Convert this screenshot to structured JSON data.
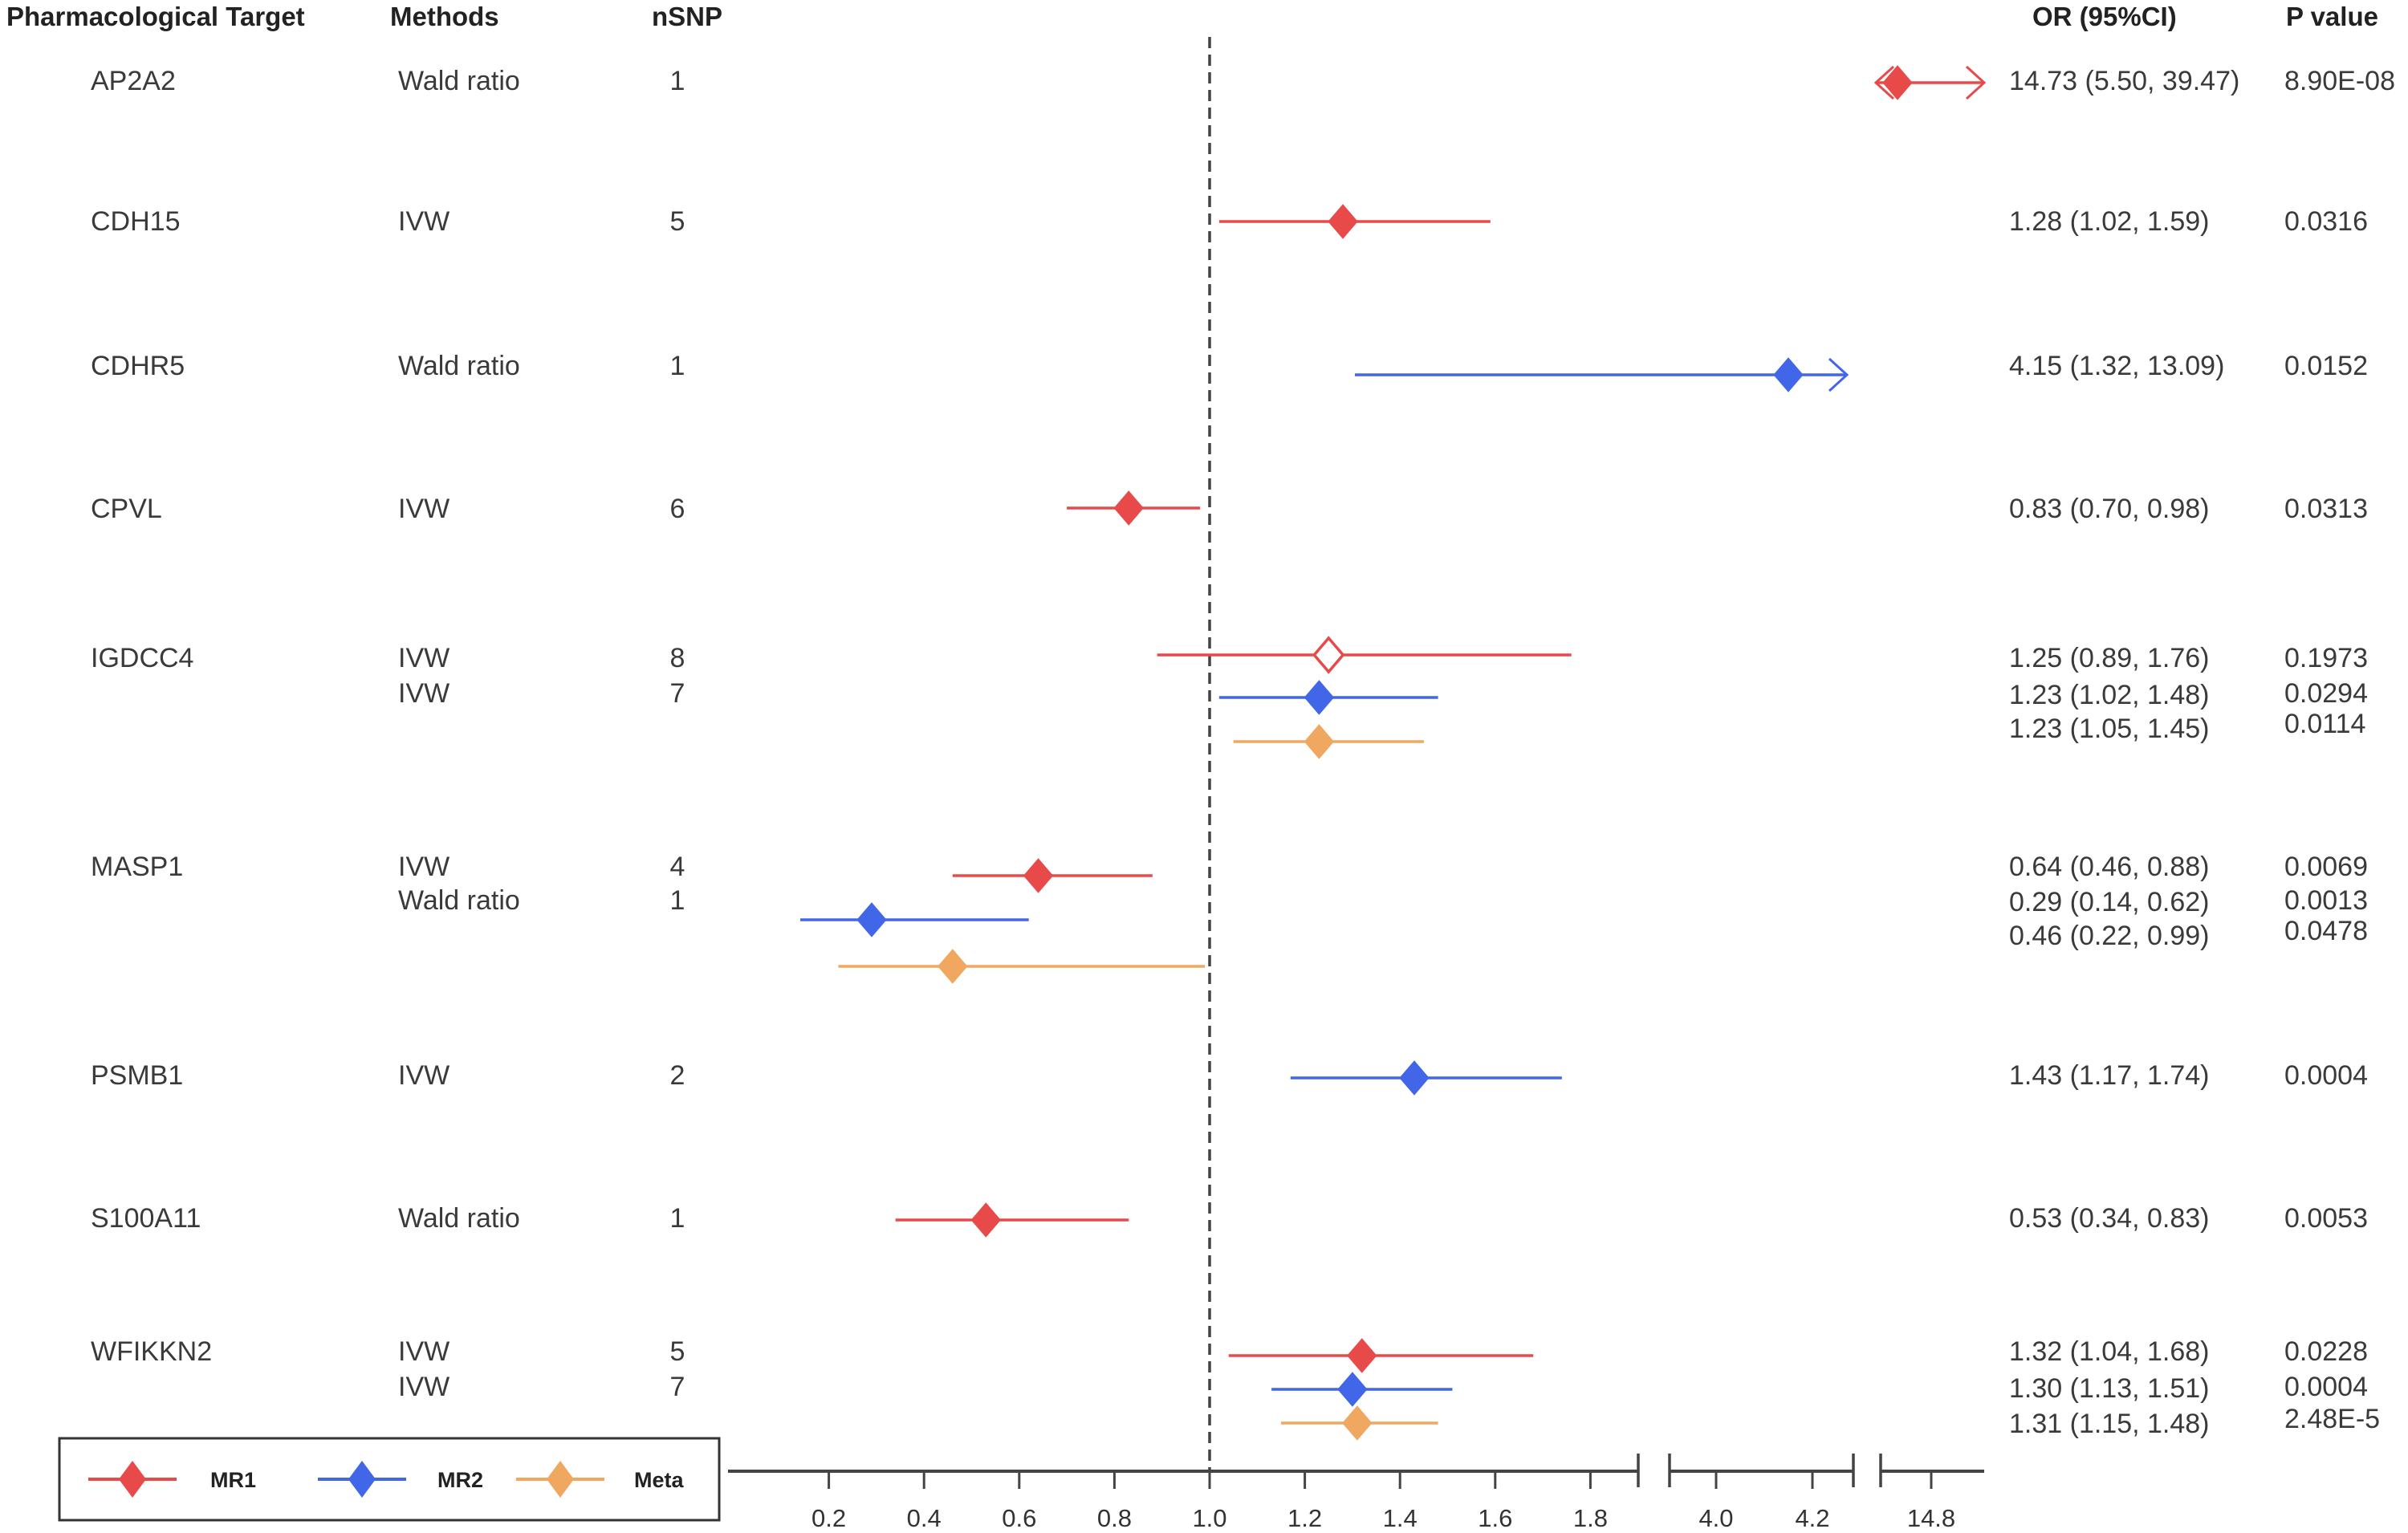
{
  "chart_data": {
    "type": "forest",
    "title": "",
    "columns": {
      "target": "Pharmacological Target",
      "method": "Methods",
      "nsnp": "nSNP",
      "or_ci": "OR (95%CI)",
      "p": "P value"
    },
    "reference_line": 1.0,
    "colors": {
      "MR1": "#e84a4a",
      "MR2": "#4166e8",
      "Meta": "#f0a860"
    },
    "legend": {
      "placement": "bottom-left",
      "entries": [
        {
          "name": "MR1",
          "color": "#e84a4a"
        },
        {
          "name": "MR2",
          "color": "#4166e8"
        },
        {
          "name": "Meta",
          "color": "#f0a860"
        }
      ]
    },
    "x_axis": {
      "segments": [
        {
          "range": [
            0.1,
            1.9
          ],
          "ticks": [
            "0.2",
            "0.4",
            "0.6",
            "0.8",
            "1.0",
            "1.2",
            "1.4",
            "1.6",
            "1.8"
          ]
        },
        {
          "range": [
            3.9,
            4.3
          ],
          "ticks": [
            "4.0",
            "4.2"
          ]
        },
        {
          "range": [
            14.7,
            14.9
          ],
          "ticks": [
            "14.8"
          ]
        }
      ],
      "breaks": true
    },
    "groups": [
      {
        "target": "AP2A2",
        "rows": [
          {
            "series": "MR1",
            "method": "Wald ratio",
            "nsnp": "1",
            "or": 14.73,
            "lo": 5.5,
            "hi": 39.47,
            "or_text": "14.73 (5.50, 39.47)",
            "p": "8.90E-08",
            "filled": true
          }
        ]
      },
      {
        "target": "CDH15",
        "rows": [
          {
            "series": "MR1",
            "method": "IVW",
            "nsnp": "5",
            "or": 1.28,
            "lo": 1.02,
            "hi": 1.59,
            "or_text": "1.28 (1.02, 1.59)",
            "p": "0.0316",
            "filled": true
          }
        ]
      },
      {
        "target": "CDHR5",
        "rows": [
          {
            "series": "MR2",
            "method": "Wald ratio",
            "nsnp": "1",
            "or": 4.15,
            "lo": 1.32,
            "hi": 13.09,
            "or_text": "4.15 (1.32, 13.09)",
            "p": "0.0152",
            "filled": true
          }
        ]
      },
      {
        "target": "CPVL",
        "rows": [
          {
            "series": "MR1",
            "method": "IVW",
            "nsnp": "6",
            "or": 0.83,
            "lo": 0.7,
            "hi": 0.98,
            "or_text": "0.83 (0.70, 0.98)",
            "p": "0.0313",
            "filled": true
          }
        ]
      },
      {
        "target": "IGDCC4",
        "rows": [
          {
            "series": "MR1",
            "method": "IVW",
            "nsnp": "8",
            "or": 1.25,
            "lo": 0.89,
            "hi": 1.76,
            "or_text": "1.25 (0.89, 1.76)",
            "p": "0.1973",
            "filled": false
          },
          {
            "series": "MR2",
            "method": "IVW",
            "nsnp": "7",
            "or": 1.23,
            "lo": 1.02,
            "hi": 1.48,
            "or_text": "1.23 (1.02, 1.48)",
            "p": "0.0294",
            "filled": true
          },
          {
            "series": "Meta",
            "method": "",
            "nsnp": "",
            "or": 1.23,
            "lo": 1.05,
            "hi": 1.45,
            "or_text": "1.23 (1.05, 1.45)",
            "p": "0.0114",
            "filled": true
          }
        ]
      },
      {
        "target": "MASP1",
        "rows": [
          {
            "series": "MR1",
            "method": "IVW",
            "nsnp": "4",
            "or": 0.64,
            "lo": 0.46,
            "hi": 0.88,
            "or_text": "0.64 (0.46, 0.88)",
            "p": "0.0069",
            "filled": true
          },
          {
            "series": "MR2",
            "method": "Wald ratio",
            "nsnp": "1",
            "or": 0.29,
            "lo": 0.14,
            "hi": 0.62,
            "or_text": "0.29 (0.14, 0.62)",
            "p": "0.0013",
            "filled": true
          },
          {
            "series": "Meta",
            "method": "",
            "nsnp": "",
            "or": 0.46,
            "lo": 0.22,
            "hi": 0.99,
            "or_text": "0.46 (0.22, 0.99)",
            "p": "0.0478",
            "filled": true
          }
        ]
      },
      {
        "target": "PSMB1",
        "rows": [
          {
            "series": "MR2",
            "method": "IVW",
            "nsnp": "2",
            "or": 1.43,
            "lo": 1.17,
            "hi": 1.74,
            "or_text": "1.43 (1.17, 1.74)",
            "p": "0.0004",
            "filled": true
          }
        ]
      },
      {
        "target": "S100A11",
        "rows": [
          {
            "series": "MR1",
            "method": "Wald ratio",
            "nsnp": "1",
            "or": 0.53,
            "lo": 0.34,
            "hi": 0.83,
            "or_text": "0.53 (0.34, 0.83)",
            "p": "0.0053",
            "filled": true
          }
        ]
      },
      {
        "target": "WFIKKN2",
        "rows": [
          {
            "series": "MR1",
            "method": "IVW",
            "nsnp": "5",
            "or": 1.32,
            "lo": 1.04,
            "hi": 1.68,
            "or_text": "1.32 (1.04, 1.68)",
            "p": "0.0228",
            "filled": true
          },
          {
            "series": "MR2",
            "method": "IVW",
            "nsnp": "7",
            "or": 1.3,
            "lo": 1.13,
            "hi": 1.51,
            "or_text": "1.30 (1.13, 1.51)",
            "p": "0.0004",
            "filled": true
          },
          {
            "series": "Meta",
            "method": "",
            "nsnp": "",
            "or": 1.31,
            "lo": 1.15,
            "hi": 1.48,
            "or_text": "1.31 (1.15, 1.48)",
            "p": "2.48E-5",
            "filled": true
          }
        ]
      }
    ]
  }
}
